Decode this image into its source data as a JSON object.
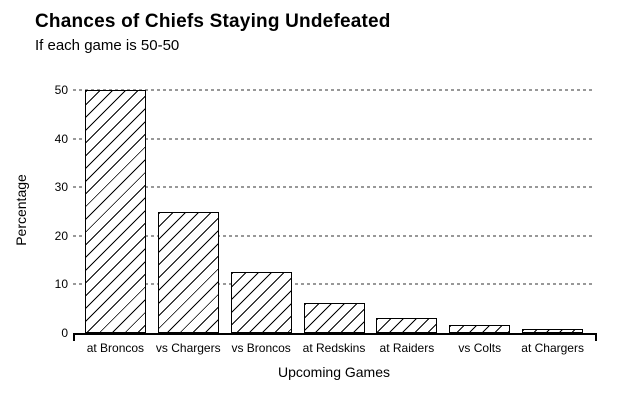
{
  "chart_data": {
    "type": "bar",
    "title": "Chances of Chiefs Staying Undefeated",
    "subtitle": "If each game is 50-50",
    "xlabel": "Upcoming Games",
    "ylabel": "Percentage",
    "categories": [
      "at Broncos",
      "vs Chargers",
      "vs Broncos",
      "at Redskins",
      "at Raiders",
      "vs Colts",
      "at Chargers"
    ],
    "values": [
      50,
      25,
      12.5,
      6.25,
      3.125,
      1.5625,
      0.78125
    ],
    "ylim": [
      0,
      50
    ],
    "yticks": [
      0,
      10,
      20,
      30,
      40,
      50
    ],
    "grid": "horizontal-dotted",
    "gridlines_at": [
      10,
      20,
      30,
      40,
      50
    ],
    "legend": "none",
    "bar_fill_style": "white-with-diagonal-hatch"
  },
  "colors": {
    "background": "#ffffff",
    "text": "#000000",
    "bar_border": "#000000",
    "bar_hatch": "#000000",
    "gridline": "#989898",
    "axis": "#000000"
  }
}
